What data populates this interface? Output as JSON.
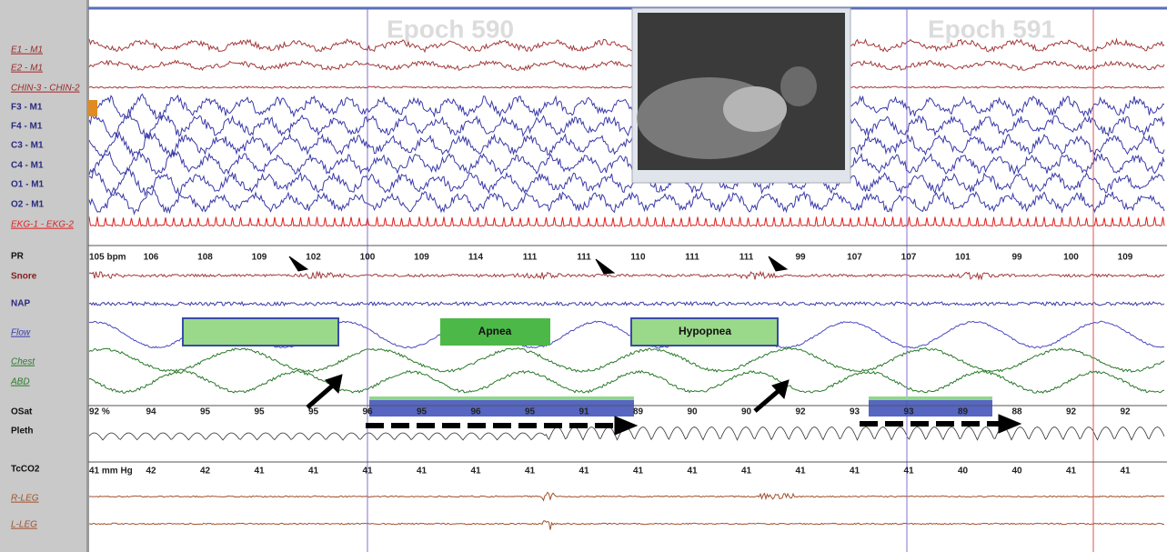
{
  "epochs": [
    "Epoch 590",
    "Epoch 591"
  ],
  "channels": [
    "E1 - M1",
    "E2 - M1",
    "CHIN-3 - CHIN-2",
    "F3 - M1",
    "F4 - M1",
    "C3 - M1",
    "C4 - M1",
    "O1 - M1",
    "O2 - M1",
    "EKG-1 - EKG-2",
    "PR",
    "Snore",
    "NAP",
    "Flow",
    "Chest",
    "ABD",
    "OSat",
    "Pleth",
    "TcCO2",
    "R-LEG",
    "L-LEG"
  ],
  "pulse_rate": {
    "unit_label": "105 bpm",
    "values": [
      106,
      108,
      109,
      102,
      100,
      109,
      114,
      111,
      111,
      110,
      111,
      111,
      99,
      107,
      107,
      101,
      99,
      100,
      109
    ]
  },
  "oxygen_saturation": {
    "unit_label": "92 %",
    "values": [
      94,
      95,
      95,
      95,
      96,
      95,
      96,
      95,
      91,
      89,
      90,
      90,
      92,
      93,
      93,
      89,
      88,
      92,
      92
    ]
  },
  "tcco2": {
    "unit_label": "41 mm Hg",
    "values": [
      42,
      42,
      41,
      41,
      41,
      41,
      41,
      41,
      41,
      41,
      41,
      41,
      41,
      41,
      41,
      40,
      40,
      41,
      41
    ]
  },
  "events": [
    "Apnea",
    "Hypopnea"
  ]
}
